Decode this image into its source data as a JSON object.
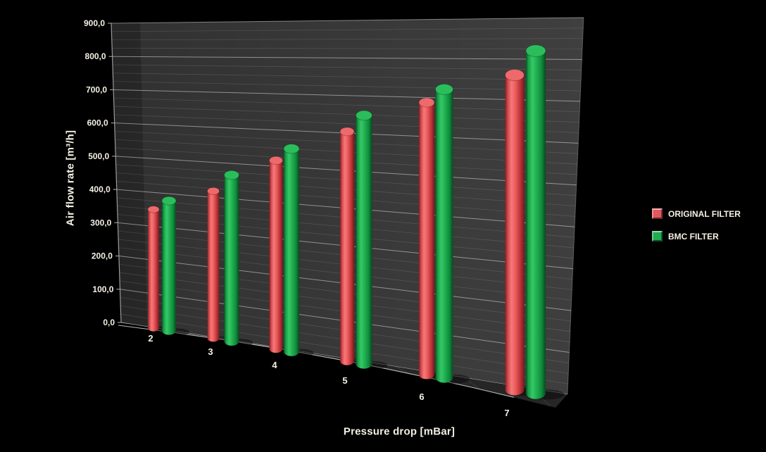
{
  "chart_data": {
    "type": "bar",
    "variant": "3d-cylinder",
    "title": "",
    "xlabel": "Pressure drop [mBar]",
    "ylabel": "Air flow rate [m³/h]",
    "categories": [
      "2",
      "3",
      "4",
      "5",
      "6",
      "7"
    ],
    "series": [
      {
        "name": "ORIGINAL FILTER",
        "color": "#e4575c",
        "values": [
          350,
          420,
          520,
          610,
          695,
          770
        ]
      },
      {
        "name": "BMC FILTER",
        "color": "#1fad51",
        "values": [
          380,
          470,
          555,
          655,
          730,
          830
        ]
      }
    ],
    "ylim": [
      0,
      900
    ],
    "y_major_step": 100,
    "y_minor_step": 25,
    "y_tick_labels": [
      "0,0",
      "100,0",
      "200,0",
      "300,0",
      "400,0",
      "500,0",
      "600,0",
      "700,0",
      "800,0",
      "900,0"
    ],
    "decimal_separator": ",",
    "grid": true,
    "legend_position": "right"
  },
  "legend": {
    "items": [
      {
        "label": "ORIGINAL FILTER",
        "color": "#e4575c"
      },
      {
        "label": "BMC FILTER",
        "color": "#1fad51"
      }
    ]
  },
  "colors": {
    "background": "#000000",
    "wall_light": "#3f3f3f",
    "wall_dark": "#313131",
    "floor": "#262626",
    "floor_edge": "#e8e8e8",
    "grid_major": "#cfcfcf",
    "grid_minor": "#8a8a8a",
    "axis_line": "#9a9a9a",
    "text": "#f5f0e4",
    "red_top": "#ee696b",
    "green_top": "#2bbd5c"
  }
}
